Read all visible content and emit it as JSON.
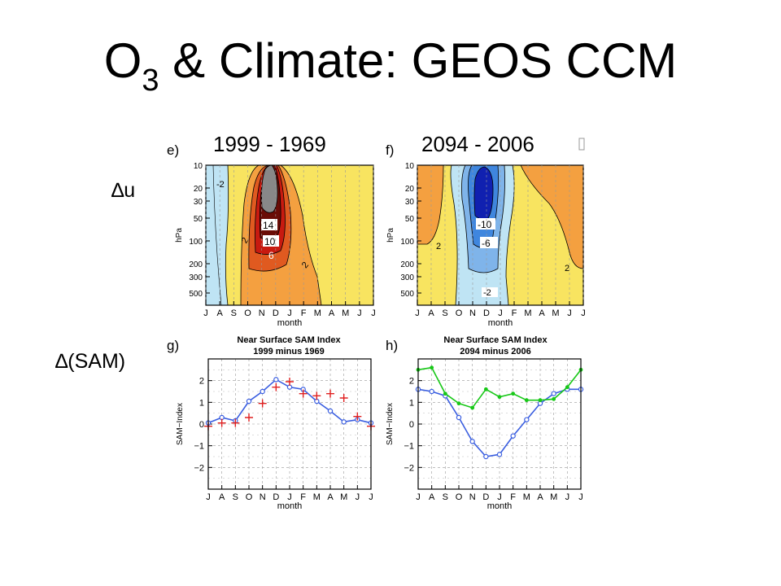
{
  "slide": {
    "title_main": "O",
    "title_sub": "3",
    "title_rest": " & Climate: GEOS CCM",
    "row_label_u": "∆u",
    "row_label_sam": "∆(SAM)",
    "col_head_left": "1999 - 1969",
    "col_head_right": "2094 - 2006"
  },
  "colors": {
    "positive_pale": "#f8e460",
    "positive_orange": "#f4a040",
    "positive_red": "#c81a10",
    "positive_dark": "#6a0c06",
    "negative_pale": "#bfe4f4",
    "negative_blue": "#3f86de",
    "negative_dark": "#1020b0",
    "gray_core": "#888888",
    "blue_series": "#3a5ee0",
    "red_series": "#e02020",
    "green_series": "#18c818"
  },
  "chart_data": [
    {
      "panel": "e)",
      "type": "heatmap",
      "xlabel": "month",
      "ylabel": "hPa",
      "x_ticks": [
        "J",
        "A",
        "S",
        "O",
        "N",
        "D",
        "J",
        "F",
        "M",
        "A",
        "M",
        "J",
        "J"
      ],
      "y_ticks": [
        "10",
        "20",
        "30",
        "50",
        "100",
        "200",
        "300",
        "500"
      ],
      "contour_labels": [
        "-2",
        "14",
        "10",
        "6",
        "2",
        "2"
      ]
    },
    {
      "panel": "f)",
      "type": "heatmap",
      "xlabel": "month",
      "ylabel": "hPa",
      "x_ticks": [
        "J",
        "A",
        "S",
        "O",
        "N",
        "D",
        "J",
        "F",
        "M",
        "A",
        "M",
        "J",
        "J"
      ],
      "y_ticks": [
        "10",
        "20",
        "30",
        "50",
        "100",
        "200",
        "300",
        "500"
      ],
      "contour_labels": [
        "-10",
        "-6",
        "2",
        "-2",
        "2"
      ]
    },
    {
      "panel": "g)",
      "type": "line",
      "title": "Near Surface SAM Index",
      "subtitle": "1999 minus 1969",
      "xlabel": "month",
      "ylabel": "SAM-Index",
      "categories": [
        "J",
        "A",
        "S",
        "O",
        "N",
        "D",
        "J",
        "F",
        "M",
        "A",
        "M",
        "J",
        "J"
      ],
      "y_ticks": [
        "2",
        "1",
        "0",
        "-1",
        "-2"
      ],
      "ylim": [
        -3,
        3
      ],
      "series": [
        {
          "style": "line-circles",
          "color": "#3a5ee0",
          "values": [
            0.05,
            0.3,
            0.15,
            1.05,
            1.5,
            2.05,
            1.7,
            1.6,
            1.05,
            0.6,
            0.1,
            0.2,
            0.05
          ]
        },
        {
          "style": "plus-markers",
          "color": "#e02020",
          "values": [
            -0.1,
            0.05,
            0.05,
            0.3,
            0.95,
            1.7,
            1.95,
            1.4,
            1.3,
            1.4,
            1.2,
            0.35,
            -0.1
          ]
        }
      ]
    },
    {
      "panel": "h)",
      "type": "line",
      "title": "Near Surface SAM Index",
      "subtitle": "2094 minus 2006",
      "xlabel": "month",
      "ylabel": "SAM-Index",
      "categories": [
        "J",
        "A",
        "S",
        "O",
        "N",
        "D",
        "J",
        "F",
        "M",
        "A",
        "M",
        "J",
        "J"
      ],
      "y_ticks": [
        "2",
        "1",
        "0",
        "-1",
        "-2"
      ],
      "ylim": [
        -3,
        3
      ],
      "series": [
        {
          "style": "line-circles",
          "color": "#3a5ee0",
          "values": [
            1.6,
            1.5,
            1.3,
            0.3,
            -0.8,
            -1.5,
            -1.4,
            -0.55,
            0.2,
            0.95,
            1.4,
            1.6,
            1.6
          ]
        },
        {
          "style": "line-dots",
          "color": "#18c818",
          "values": [
            2.5,
            2.6,
            1.4,
            0.95,
            0.75,
            1.6,
            1.25,
            1.4,
            1.1,
            1.1,
            1.15,
            1.7,
            2.5
          ]
        }
      ]
    }
  ]
}
